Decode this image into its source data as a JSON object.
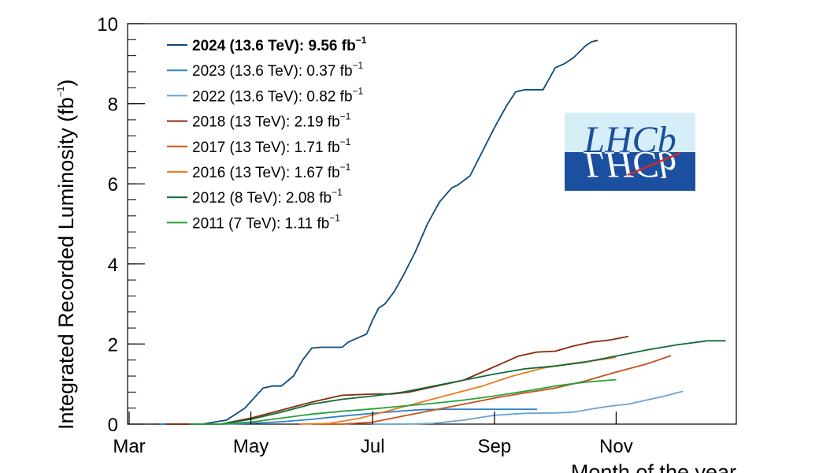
{
  "chart_data": {
    "type": "line",
    "xlabel": "Month of the year",
    "ylabel": "Integrated Recorded Luminosity (fb",
    "ylabel_sup": "−1",
    "ylabel_close": ")",
    "xlim": [
      0,
      10
    ],
    "ylim": [
      0,
      10
    ],
    "x_ticks": [
      {
        "label": "Mar",
        "value": 0
      },
      {
        "label": "May",
        "value": 2
      },
      {
        "label": "Jul",
        "value": 4
      },
      {
        "label": "Sep",
        "value": 6
      },
      {
        "label": "Nov",
        "value": 8
      }
    ],
    "y_ticks": [
      {
        "label": "0",
        "value": 0
      },
      {
        "label": "2",
        "value": 2
      },
      {
        "label": "4",
        "value": 4
      },
      {
        "label": "6",
        "value": 6
      },
      {
        "label": "8",
        "value": 8
      },
      {
        "label": "10",
        "value": 10
      }
    ],
    "logo": {
      "text": "LHCb",
      "colors": {
        "top": "#d6eef8",
        "bottom": "#1b50a0",
        "text_top": "#1b4f9c",
        "slash": "#d22828"
      }
    },
    "series": [
      {
        "name": "2024",
        "label_main": "2024 (13.6 TeV): 9.56 fb",
        "label_sup": "−1",
        "bold": true,
        "color": "#0b4a7f",
        "x": [
          0.4,
          1.2,
          1.6,
          1.9,
          2.2,
          2.35,
          2.5,
          2.7,
          2.85,
          3.0,
          3.15,
          3.3,
          3.5,
          3.6,
          3.75,
          3.9,
          4.0,
          4.1,
          4.2,
          4.35,
          4.5,
          4.7,
          4.9,
          5.1,
          5.3,
          5.4,
          5.6,
          5.8,
          6.0,
          6.2,
          6.35,
          6.5,
          6.6,
          6.8,
          7.0,
          7.15,
          7.3,
          7.4,
          7.5,
          7.6,
          7.7
        ],
        "y": [
          0,
          0,
          0.1,
          0.4,
          0.9,
          0.95,
          0.95,
          1.2,
          1.6,
          1.9,
          1.92,
          1.92,
          1.92,
          2.05,
          2.15,
          2.25,
          2.6,
          2.9,
          3.0,
          3.3,
          3.7,
          4.3,
          5.0,
          5.55,
          5.9,
          5.97,
          6.2,
          6.8,
          7.4,
          7.95,
          8.3,
          8.35,
          8.35,
          8.35,
          8.9,
          9.0,
          9.15,
          9.3,
          9.45,
          9.55,
          9.58
        ]
      },
      {
        "name": "2023",
        "label_main": "2023 (13.6 TeV): 0.37 fb",
        "label_sup": "−1",
        "bold": false,
        "color": "#2f82c4",
        "x": [
          0.5,
          1.5,
          2.0,
          2.5,
          3.0,
          3.5,
          4.0,
          4.5,
          4.8,
          5.2,
          5.6,
          6.0,
          6.5,
          6.7
        ],
        "y": [
          0,
          0,
          0.02,
          0.06,
          0.12,
          0.2,
          0.27,
          0.33,
          0.36,
          0.37,
          0.37,
          0.37,
          0.37,
          0.37
        ]
      },
      {
        "name": "2022",
        "label_main": "2022 (13.6 TeV): 0.82 fb",
        "label_sup": "−1",
        "bold": false,
        "color": "#6aa4d2",
        "x": [
          4.0,
          4.5,
          5.0,
          5.5,
          6.0,
          6.5,
          7.0,
          7.3,
          7.6,
          7.9,
          8.2,
          8.5,
          8.8,
          9.1
        ],
        "y": [
          0,
          0,
          0.02,
          0.1,
          0.22,
          0.27,
          0.28,
          0.3,
          0.38,
          0.45,
          0.5,
          0.6,
          0.7,
          0.82
        ]
      },
      {
        "name": "2018",
        "label_main": "2018 (13 TeV): 2.19 fb",
        "label_sup": "−1",
        "bold": false,
        "color": "#8a2a08",
        "x": [
          0.6,
          1.5,
          2.0,
          2.5,
          3.0,
          3.5,
          4.0,
          4.3,
          4.6,
          4.9,
          5.2,
          5.5,
          5.8,
          6.1,
          6.4,
          6.7,
          7.0,
          7.3,
          7.6,
          7.9,
          8.2
        ],
        "y": [
          0,
          0,
          0.15,
          0.35,
          0.55,
          0.72,
          0.75,
          0.75,
          0.8,
          0.9,
          1.0,
          1.1,
          1.3,
          1.5,
          1.7,
          1.8,
          1.82,
          1.95,
          2.05,
          2.1,
          2.19
        ]
      },
      {
        "name": "2017",
        "label_main": "2017 (13 TeV): 1.71 fb",
        "label_sup": "−1",
        "bold": false,
        "color": "#c8501a",
        "x": [
          3.0,
          3.5,
          4.0,
          4.5,
          5.0,
          5.5,
          6.0,
          6.5,
          7.0,
          7.5,
          8.0,
          8.5,
          8.9
        ],
        "y": [
          0,
          0,
          0.05,
          0.2,
          0.35,
          0.5,
          0.65,
          0.78,
          0.9,
          1.08,
          1.3,
          1.5,
          1.71
        ]
      },
      {
        "name": "2016",
        "label_main": "2016 (13 TeV): 1.67 fb",
        "label_sup": "−1",
        "bold": false,
        "color": "#ea7a1c",
        "x": [
          2.8,
          3.3,
          3.8,
          4.3,
          4.8,
          5.3,
          5.8,
          6.3,
          6.8,
          7.3,
          7.8,
          8.0
        ],
        "y": [
          0,
          0.02,
          0.15,
          0.35,
          0.55,
          0.75,
          0.95,
          1.2,
          1.4,
          1.52,
          1.62,
          1.67
        ]
      },
      {
        "name": "2012",
        "label_main": "2012 (8 TeV): 2.08 fb",
        "label_sup": "−1",
        "bold": false,
        "color": "#0f6b38",
        "x": [
          1.0,
          1.5,
          2.0,
          2.5,
          3.0,
          3.5,
          4.0,
          4.5,
          5.0,
          5.5,
          6.0,
          6.5,
          7.0,
          7.5,
          8.0,
          8.5,
          9.0,
          9.5,
          9.8
        ],
        "y": [
          0,
          0,
          0.12,
          0.3,
          0.5,
          0.62,
          0.7,
          0.8,
          0.95,
          1.1,
          1.25,
          1.38,
          1.45,
          1.55,
          1.7,
          1.85,
          1.98,
          2.08,
          2.08
        ]
      },
      {
        "name": "2011",
        "label_main": "2011 (7 TeV): 1.11 fb",
        "label_sup": "−1",
        "bold": false,
        "color": "#27a13b",
        "x": [
          1.0,
          1.5,
          2.0,
          2.5,
          3.0,
          3.5,
          4.0,
          4.5,
          5.0,
          5.5,
          6.0,
          6.5,
          7.0,
          7.5,
          8.0
        ],
        "y": [
          0,
          0,
          0.05,
          0.15,
          0.25,
          0.32,
          0.38,
          0.45,
          0.52,
          0.6,
          0.7,
          0.82,
          0.95,
          1.05,
          1.11
        ]
      }
    ]
  }
}
